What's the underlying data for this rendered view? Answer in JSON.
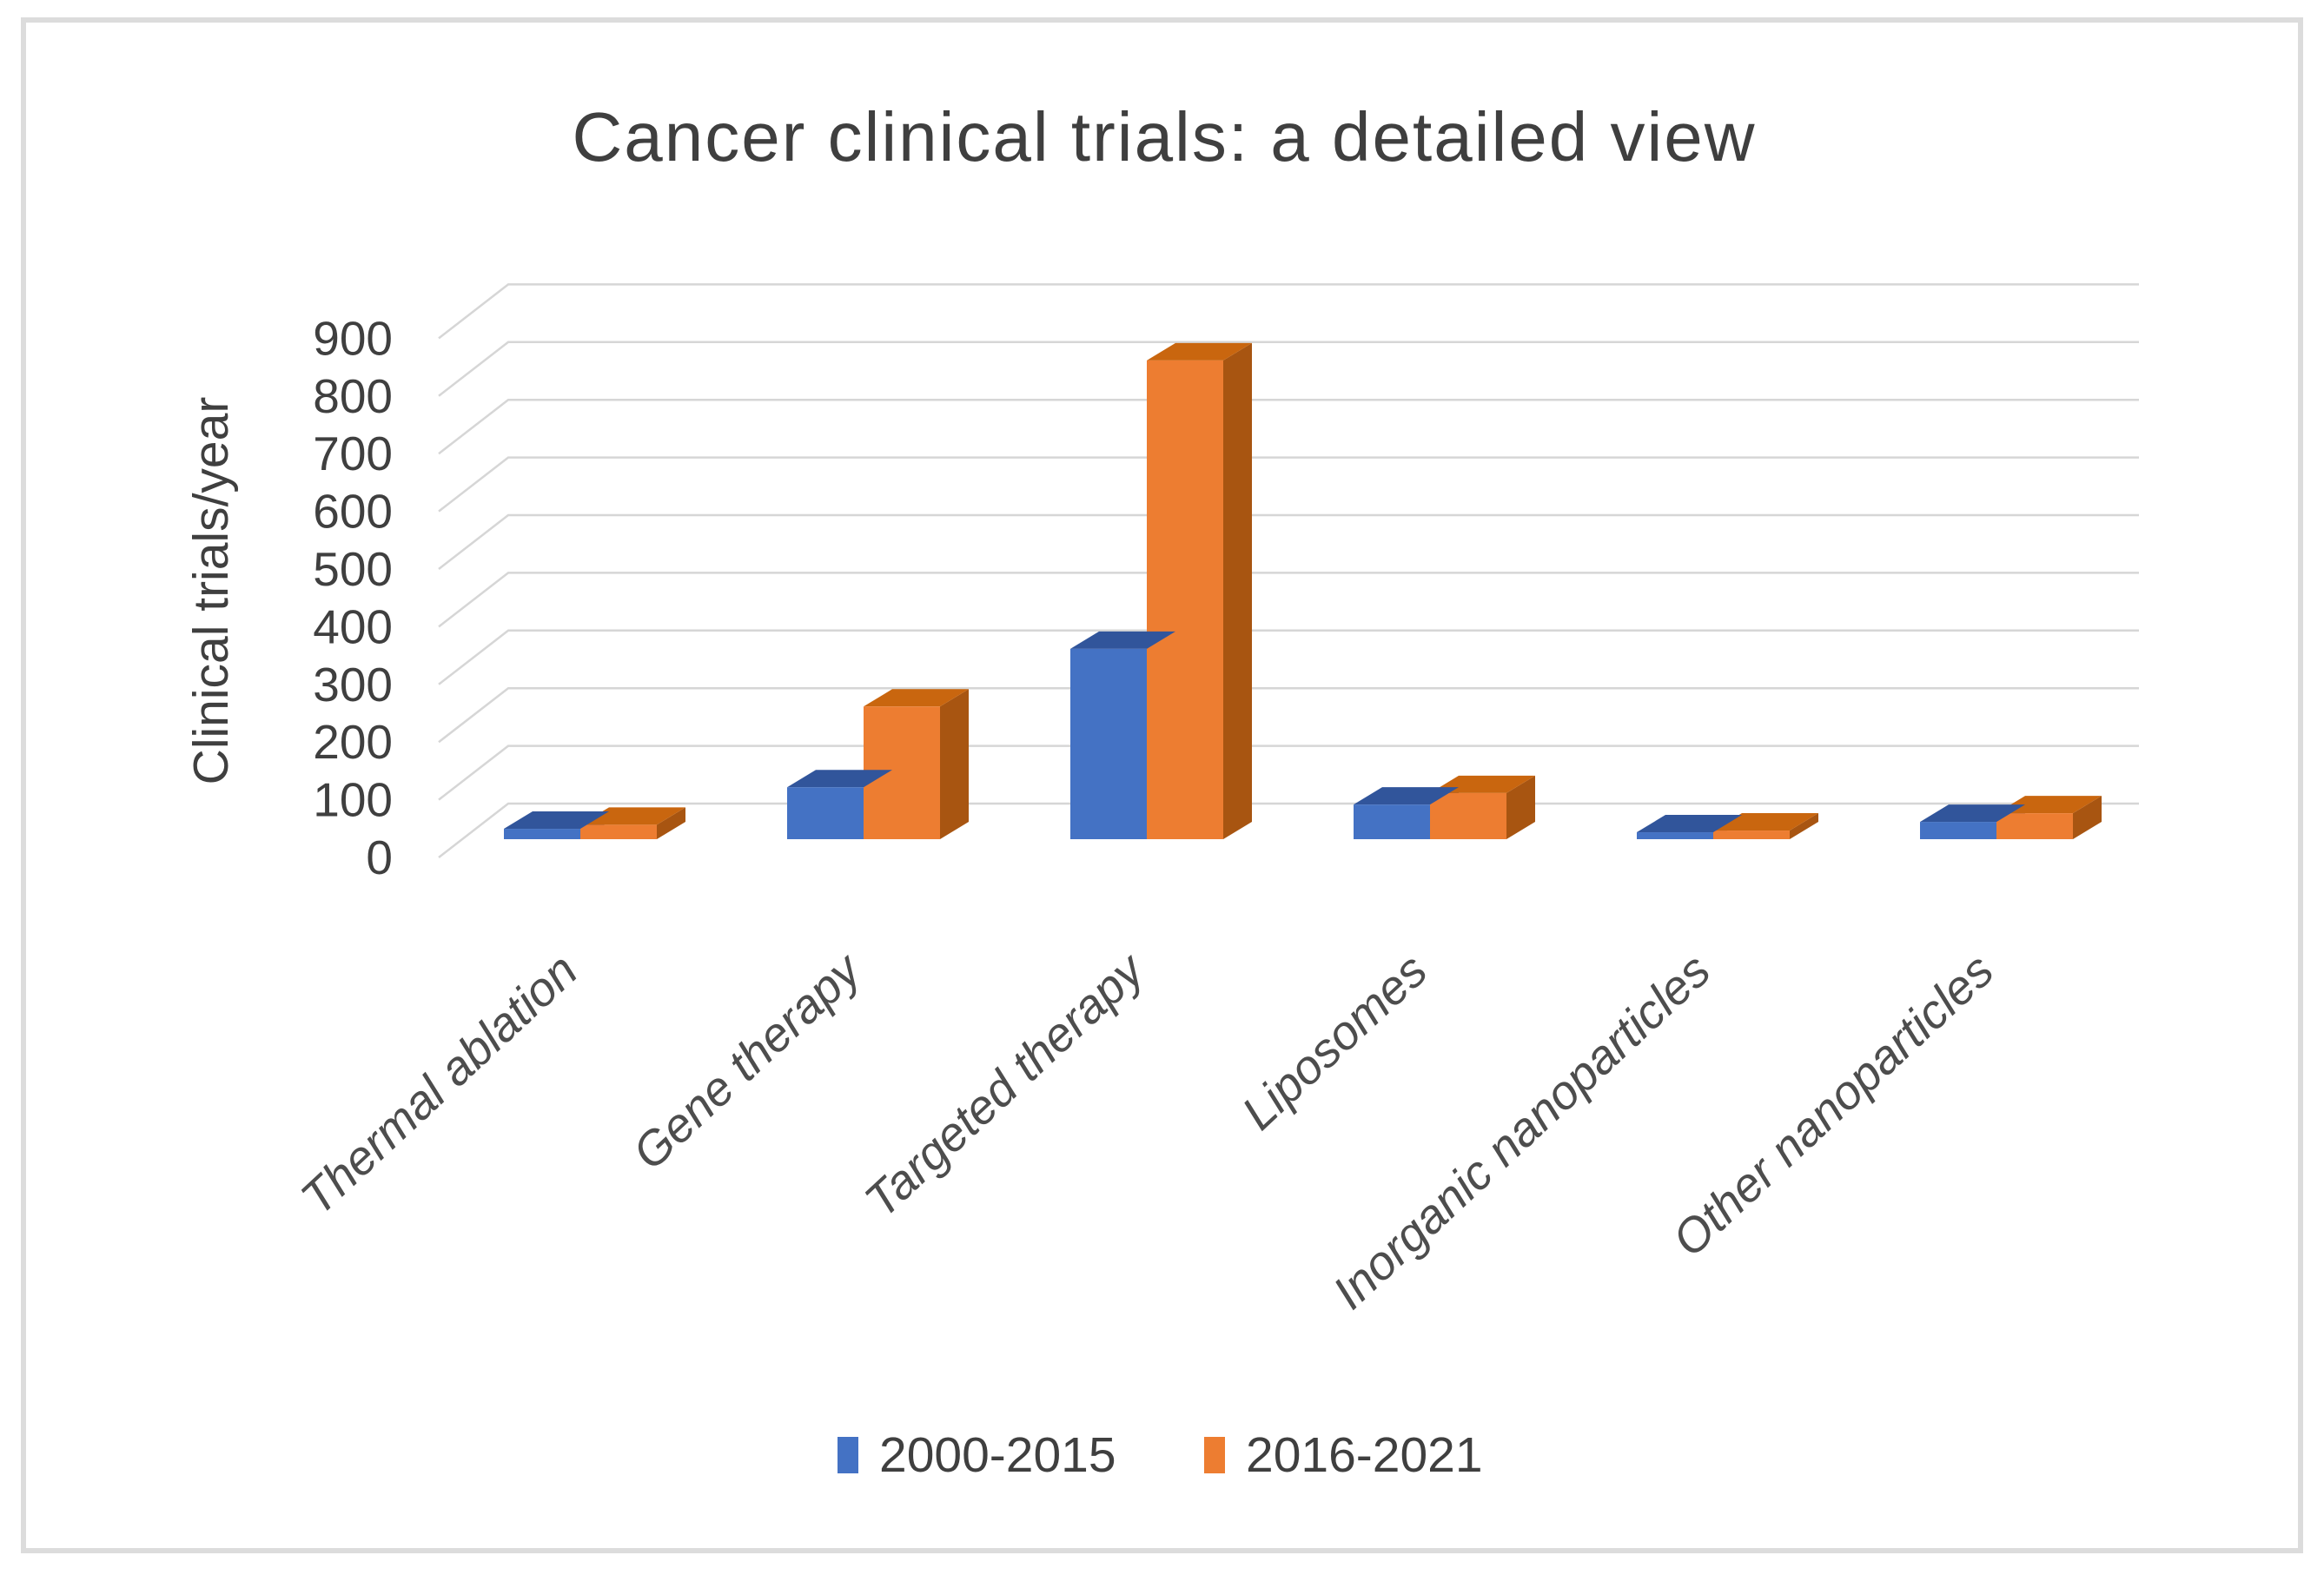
{
  "title": "Cancer clinical trials: a detailed view",
  "y_axis": {
    "title": "Clinical trials/year",
    "min": 0,
    "max": 900,
    "tick_step": 100
  },
  "legend": {
    "items": [
      {
        "label": "2000-2015",
        "color": "#4472C4"
      },
      {
        "label": "2016-2021",
        "color": "#ED7D31"
      }
    ]
  },
  "colors": {
    "title_text": "#3f3f3f",
    "axis_text": "#3f3f3f",
    "category_text": "#4d4d4d",
    "gridline": "#d6d6d6",
    "frame_border": "#dcdcdc",
    "background": "#ffffff",
    "series_blue": {
      "front": "#4472C4",
      "top": "#31559B",
      "side": "#2D4B85"
    },
    "series_orange": {
      "front": "#ED7D31",
      "top": "#C9660F",
      "side": "#A85511"
    }
  },
  "chart_data": {
    "type": "bar",
    "subtype": "3d-clustered-column",
    "title": "Cancer clinical trials: a detailed view",
    "xlabel": "",
    "ylabel": "Clinical trials/year",
    "ylim": [
      0,
      900
    ],
    "ytick_step": 100,
    "grid": true,
    "legend_position": "bottom",
    "categories": [
      "Thermal ablation",
      "Gene therapy",
      "Targeted therapy",
      "Liposomes",
      "Inorganic nanoparticles",
      "Other nanoparticles"
    ],
    "series": [
      {
        "name": "2000-2015",
        "color": "#4472C4",
        "values": [
          18,
          90,
          330,
          60,
          12,
          30
        ]
      },
      {
        "name": "2016-2021",
        "color": "#ED7D31",
        "values": [
          25,
          230,
          830,
          80,
          15,
          45
        ]
      }
    ]
  }
}
